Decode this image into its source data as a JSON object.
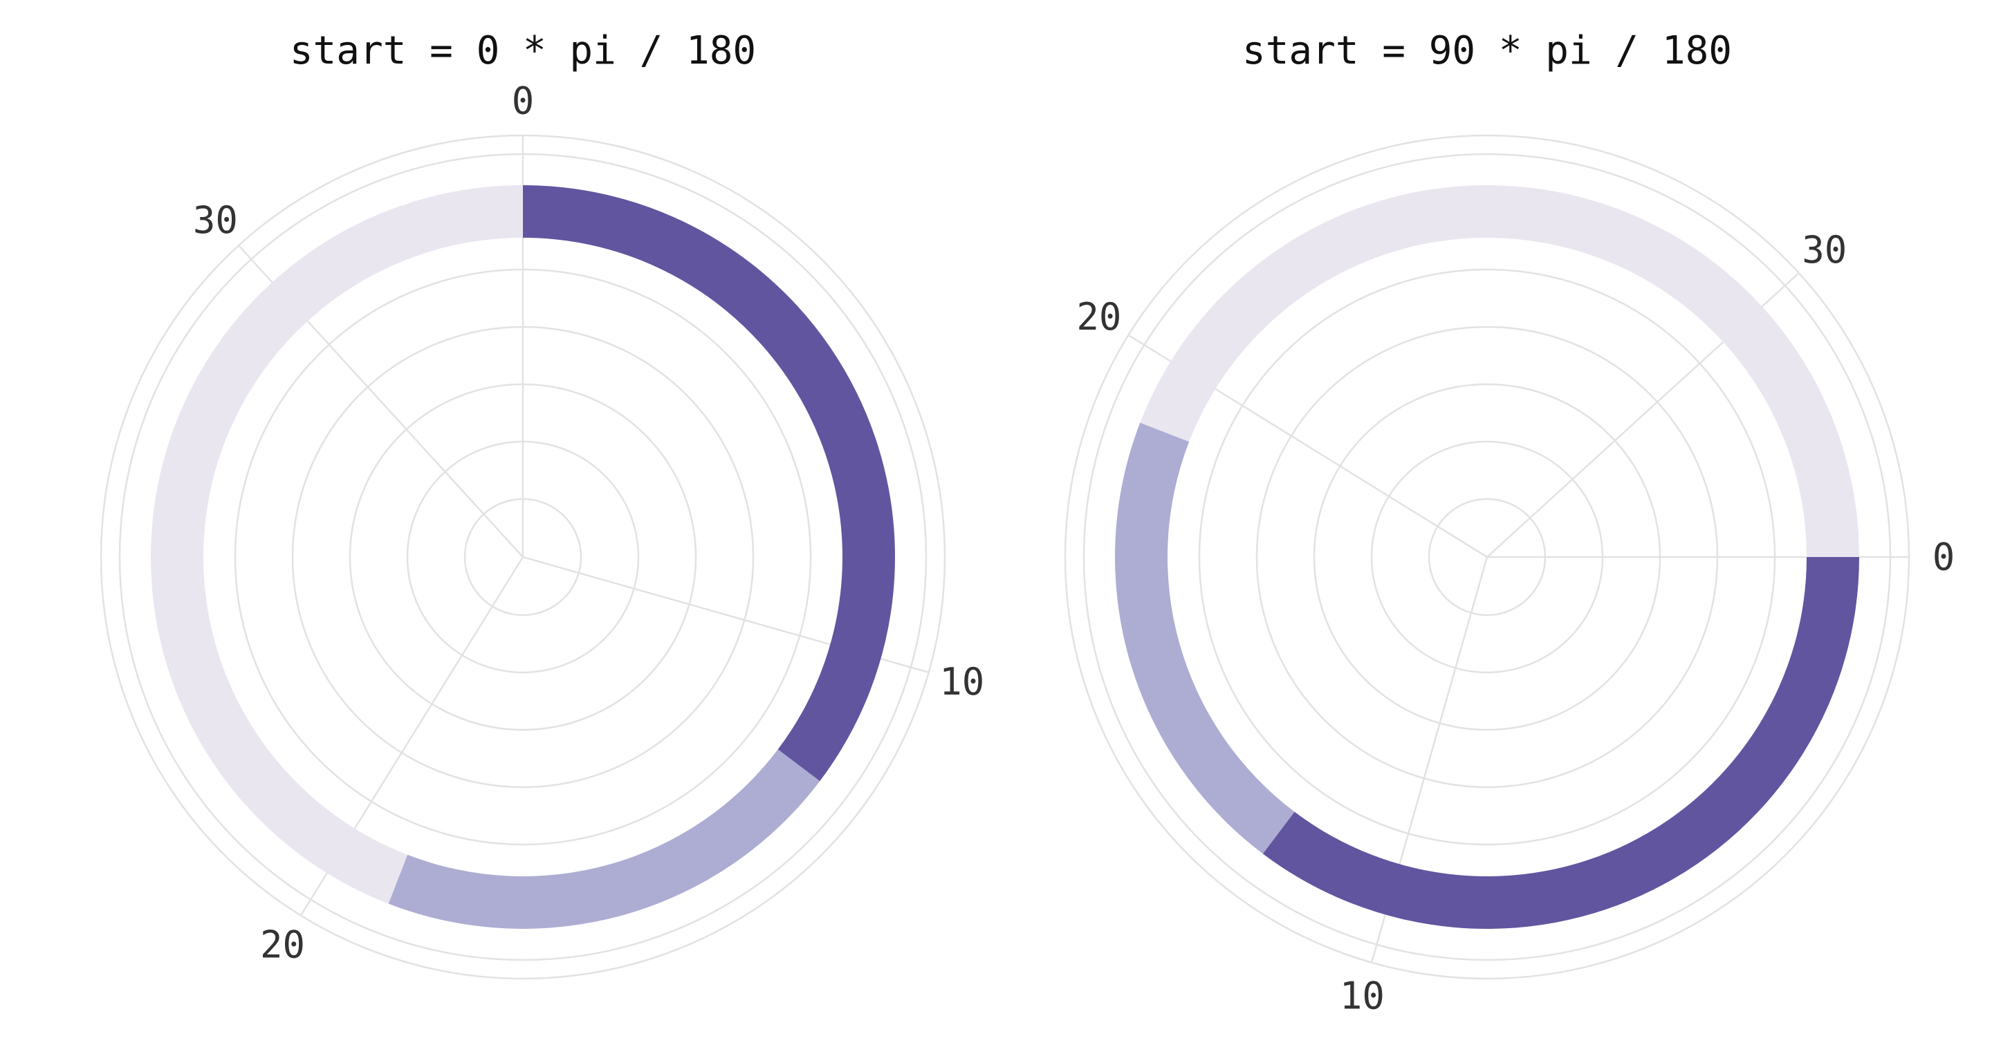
{
  "chart_data": [
    {
      "type": "pie",
      "title": "start = 0 * pi / 180",
      "start_degrees": 0,
      "axis_max": 34,
      "angular_ticks": [
        0,
        10,
        20,
        30
      ],
      "slices": [
        {
          "value": 12,
          "color": "#6155a0"
        },
        {
          "value": 7,
          "color": "#adadd3"
        },
        {
          "value": 15,
          "color": "#e9e6f0"
        }
      ],
      "grid": true
    },
    {
      "type": "pie",
      "title": "start = 90 * pi / 180",
      "start_degrees": 90,
      "axis_max": 34,
      "angular_ticks": [
        0,
        10,
        20,
        30
      ],
      "slices": [
        {
          "value": 12,
          "color": "#6155a0"
        },
        {
          "value": 7,
          "color": "#adadd3"
        },
        {
          "value": 15,
          "color": "#e9e6f0"
        }
      ],
      "grid": true
    }
  ]
}
